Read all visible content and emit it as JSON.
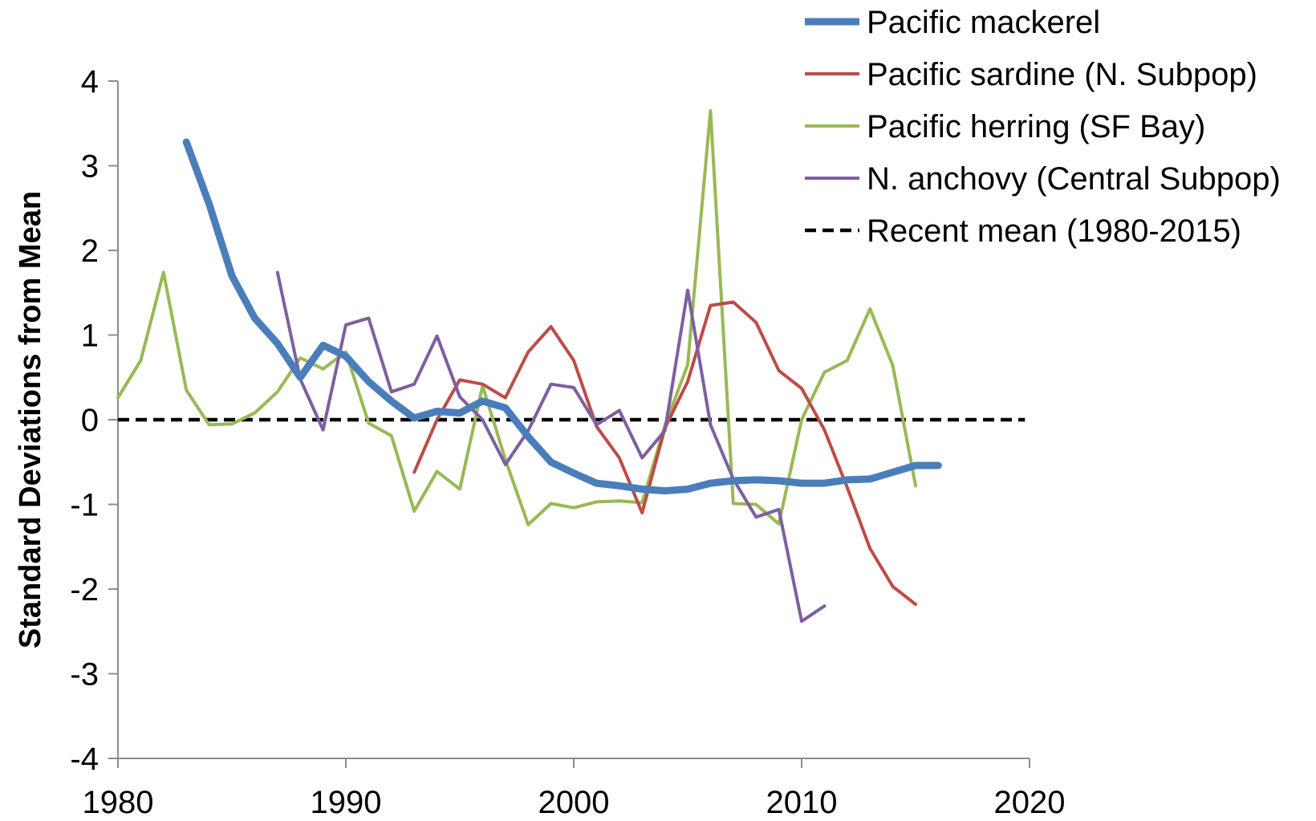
{
  "chart_data": {
    "type": "line",
    "title": "",
    "xlabel": "",
    "ylabel": "Standard Deviations from Mean",
    "xlim": [
      1980,
      2020
    ],
    "ylim": [
      -4,
      4
    ],
    "x_ticks": [
      "1980",
      "1990",
      "2000",
      "2010",
      "2020"
    ],
    "y_ticks": [
      "4",
      "3",
      "2",
      "1",
      "0",
      "-1",
      "-2",
      "-3",
      "-4"
    ],
    "grid": false,
    "legend_position": "top-right",
    "series": [
      {
        "name": "Pacific mackerel",
        "color": "#4a7ebb",
        "style": "thick",
        "x": [
          1983,
          1984,
          1985,
          1986,
          1987,
          1988,
          1989,
          1990,
          1991,
          1992,
          1993,
          1994,
          1995,
          1996,
          1997,
          1998,
          1999,
          2000,
          2001,
          2002,
          2003,
          2004,
          2005,
          2006,
          2007,
          2008,
          2009,
          2010,
          2011,
          2012,
          2013,
          2014,
          2015,
          2016
        ],
        "y": [
          3.28,
          2.55,
          1.7,
          1.2,
          0.9,
          0.5,
          0.88,
          0.75,
          0.45,
          0.22,
          0.02,
          0.1,
          0.08,
          0.22,
          0.14,
          -0.2,
          -0.5,
          -0.63,
          -0.75,
          -0.78,
          -0.82,
          -0.84,
          -0.82,
          -0.75,
          -0.72,
          -0.71,
          -0.72,
          -0.75,
          -0.75,
          -0.71,
          -0.7,
          -0.62,
          -0.54,
          -0.54
        ]
      },
      {
        "name": "Pacific sardine (N. Subpop)",
        "color": "#be4b48",
        "style": "solid",
        "x": [
          1993,
          1994,
          1995,
          1996,
          1997,
          1998,
          1999,
          2000,
          2001,
          2002,
          2003,
          2004,
          2005,
          2006,
          2007,
          2008,
          2009,
          2010,
          2011,
          2012,
          2013,
          2014,
          2015
        ],
        "y": [
          -0.62,
          0.0,
          0.47,
          0.42,
          0.26,
          0.8,
          1.1,
          0.7,
          -0.08,
          -0.45,
          -1.1,
          -0.1,
          0.45,
          1.35,
          1.39,
          1.15,
          0.58,
          0.37,
          -0.12,
          -0.8,
          -1.52,
          -1.97,
          -2.18
        ]
      },
      {
        "name": "Pacific herring (SF Bay)",
        "color": "#98b954",
        "style": "solid",
        "x": [
          1980,
          1981,
          1982,
          1983,
          1984,
          1985,
          1986,
          1987,
          1988,
          1989,
          1990,
          1991,
          1992,
          1993,
          1994,
          1995,
          1996,
          1997,
          1998,
          1999,
          2000,
          2001,
          2002,
          2003,
          2004,
          2005,
          2006,
          2007,
          2008,
          2009,
          2010,
          2011,
          2012,
          2013,
          2014,
          2015
        ],
        "y": [
          0.26,
          0.7,
          1.74,
          0.35,
          -0.06,
          -0.05,
          0.08,
          0.33,
          0.73,
          0.6,
          0.8,
          -0.04,
          -0.19,
          -1.08,
          -0.61,
          -0.82,
          0.4,
          -0.47,
          -1.24,
          -0.99,
          -1.04,
          -0.97,
          -0.96,
          -0.98,
          -0.07,
          0.65,
          3.65,
          -0.99,
          -1.0,
          -1.23,
          0.0,
          0.56,
          0.7,
          1.31,
          0.64,
          -0.78
        ]
      },
      {
        "name": "N. anchovy (Central Subpop)",
        "color": "#7d5fa0",
        "style": "solid",
        "x": [
          1987,
          1988,
          1989,
          1990,
          1991,
          1992,
          1993,
          1994,
          1995,
          1996,
          1997,
          1998,
          1999,
          2000,
          2001,
          2002,
          2003,
          2004,
          2005,
          2006,
          2007,
          2008,
          2009,
          2010,
          2011
        ],
        "y": [
          1.74,
          0.48,
          -0.12,
          1.12,
          1.2,
          0.33,
          0.42,
          0.99,
          0.27,
          0.0,
          -0.53,
          -0.13,
          0.42,
          0.38,
          -0.06,
          0.11,
          -0.45,
          -0.13,
          1.53,
          -0.06,
          -0.7,
          -1.15,
          -1.06,
          -2.38,
          -2.2
        ]
      },
      {
        "name": "Recent mean (1980-2015)",
        "color": "#000000",
        "style": "dashed",
        "x": [
          1980,
          2019.8
        ],
        "y": [
          0,
          0
        ]
      }
    ]
  }
}
